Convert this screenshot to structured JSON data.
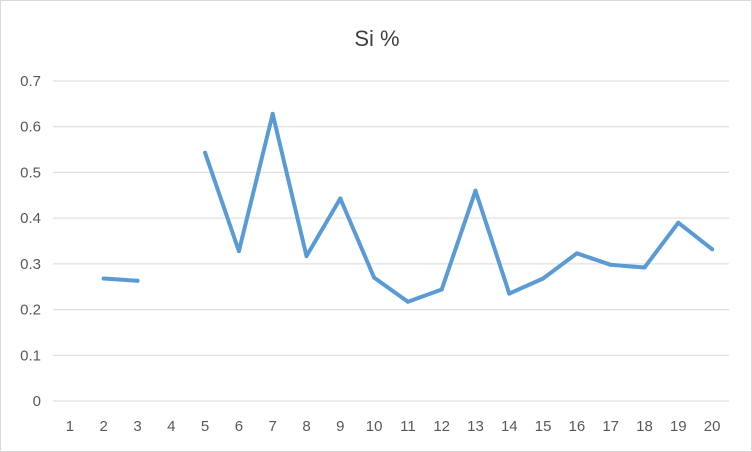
{
  "chart_data": {
    "type": "line",
    "title": "Si %",
    "xlabel": "",
    "ylabel": "",
    "categories": [
      "1",
      "2",
      "3",
      "4",
      "5",
      "6",
      "7",
      "8",
      "9",
      "10",
      "11",
      "12",
      "13",
      "14",
      "15",
      "16",
      "17",
      "18",
      "19",
      "20"
    ],
    "series": [
      {
        "values": [
          null,
          0.268,
          0.263,
          null,
          0.543,
          0.328,
          0.628,
          0.317,
          0.443,
          0.27,
          0.217,
          0.244,
          0.46,
          0.235,
          0.268,
          0.323,
          0.298,
          0.292,
          0.39,
          0.332
        ]
      }
    ],
    "ylim": [
      0,
      0.7
    ],
    "yticks": [
      "0",
      "0.1",
      "0.2",
      "0.3",
      "0.4",
      "0.5",
      "0.6",
      "0.7"
    ],
    "grid": true,
    "legend": "none",
    "colors": {
      "line": "#5b9bd5",
      "grid": "#d9d9d9",
      "axis": "#d9d9d9",
      "text": "#595959"
    }
  }
}
